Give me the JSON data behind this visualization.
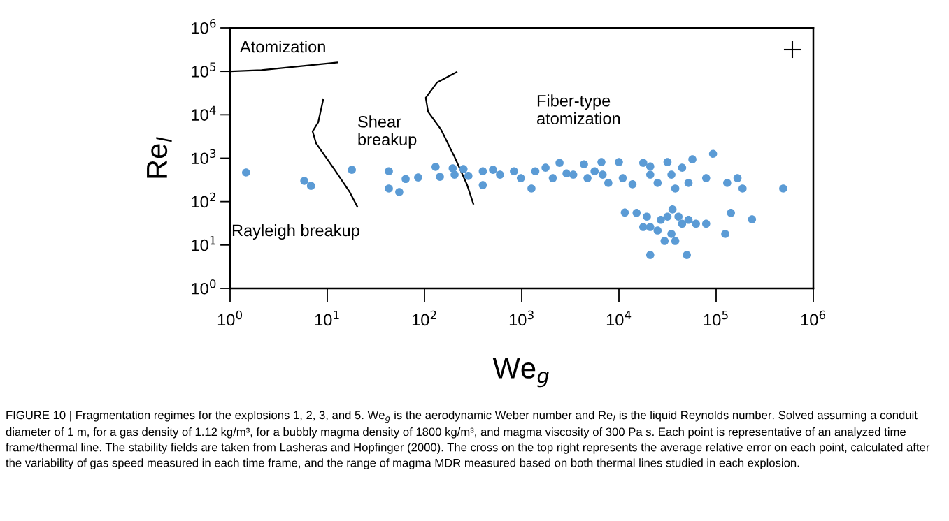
{
  "chart_data": {
    "type": "scatter",
    "xlabel": "We$_{g}$",
    "ylabel": "Re$_{l}$",
    "log": "xy",
    "xlim": [
      1,
      1000000
    ],
    "ylim": [
      1,
      1000000
    ],
    "xticks": [
      {
        "value": 1,
        "label": "10$^{0}$"
      },
      {
        "value": 10,
        "label": "10$^{1}$"
      },
      {
        "value": 100,
        "label": "10$^{2}$"
      },
      {
        "value": 1000,
        "label": "10$^{3}$"
      },
      {
        "value": 10000,
        "label": "10$^{4}$"
      },
      {
        "value": 100000,
        "label": "10$^{5}$"
      },
      {
        "value": 1000000,
        "label": "10$^{6}$"
      }
    ],
    "yticks": [
      {
        "value": 1,
        "label": "10$^{0}$"
      },
      {
        "value": 10,
        "label": "10$^{1}$"
      },
      {
        "value": 100,
        "label": "10$^{2}$"
      },
      {
        "value": 1000,
        "label": "10$^{3}$"
      },
      {
        "value": 10000,
        "label": "10$^{4}$"
      },
      {
        "value": 100000,
        "label": "10$^{5}$"
      },
      {
        "value": 1000000,
        "label": "10$^{6}$"
      }
    ],
    "series": [
      {
        "marker": "circle",
        "color": "#5b9bd5",
        "x": [
          1.46,
          5.8,
          6.8,
          17.9,
          43,
          43,
          55,
          64,
          86,
          130,
          144,
          195,
          204,
          252,
          283,
          398,
          398,
          507,
          598,
          832,
          980,
          1260,
          1380,
          1760,
          2090,
          2450,
          2890,
          3390,
          4370,
          4750,
          5620,
          6610,
          6800,
          7780,
          10000,
          10960,
          13800,
          17800,
          21000,
          21000,
          25000,
          31600,
          34700,
          38000,
          44700,
          52000,
          57000,
          79000,
          93000,
          130000,
          166000,
          187000,
          490000,
          11500,
          15200,
          19400,
          21000,
          27000,
          31600,
          35600,
          34700,
          44700,
          52000,
          29500,
          38000,
          62000,
          79000,
          21000,
          50000,
          142000,
          234000,
          124000,
          25000,
          17800,
          41000
        ],
        "values": [
          468,
          300,
          230,
          540,
          500,
          200,
          166,
          332,
          360,
          630,
          372,
          585,
          417,
          562,
          390,
          240,
          500,
          540,
          417,
          500,
          347,
          200,
          500,
          603,
          347,
          780,
          447,
          417,
          724,
          347,
          500,
          813,
          417,
          269,
          813,
          347,
          251,
          780,
          417,
          646,
          269,
          813,
          417,
          200,
          603,
          269,
          940,
          347,
          1260,
          269,
          347,
          200,
          200,
          56,
          55,
          45,
          26,
          38,
          45,
          66,
          18,
          31,
          38,
          12.4,
          12.4,
          31,
          31,
          5.9,
          5.9,
          55,
          39,
          18,
          21.6,
          26,
          45
        ]
      },
      {
        "type": "line",
        "color": "#000000",
        "marker": "none",
        "x": [
          1.03,
          2.1,
          12.6
        ],
        "values": [
          100000,
          107000,
          160000
        ]
      },
      {
        "type": "line",
        "color": "#000000",
        "marker": "none",
        "x": [
          9.06,
          8.06,
          7.06,
          7.67,
          12.2,
          17.0,
          20.4
        ],
        "values": [
          21900,
          6700,
          4150,
          2200,
          500,
          166,
          76
        ]
      },
      {
        "type": "line",
        "color": "#000000",
        "marker": "none",
        "x": [
          214,
          134,
          103,
          109,
          147,
          204,
          275,
          318
        ],
        "values": [
          96000,
          55000,
          24500,
          11700,
          4680,
          1070,
          240,
          89
        ]
      }
    ],
    "annotations": [
      "Atomization",
      "Shear\nbreakup",
      "Fiber-type\natomization",
      "Rayleigh breakup",
      "FIGURE 10 | Fragmentation regimes for the explosions 1, 2, 3, and 5. We$_{g}$ is the aerodynamic Weber number and Re$_{l}$ is the liquid Reynolds number. Solved assuming a conduit diameter of 1 m, for a gas density of 1.12 kg/m³, for a bubbly magma density of 1800 kg/m³, and magma viscosity of 300 Pa s. Each point is representative of an analyzed time frame/thermal line. The stability fields are taken from Lasheras and Hopfinger (2000). The cross on the top right represents the average relative error on each point, calculated after the variability of gas speed measured in each time frame, and the range of magma MDR measured based on both thermal lines studied in each explosion."
    ]
  }
}
